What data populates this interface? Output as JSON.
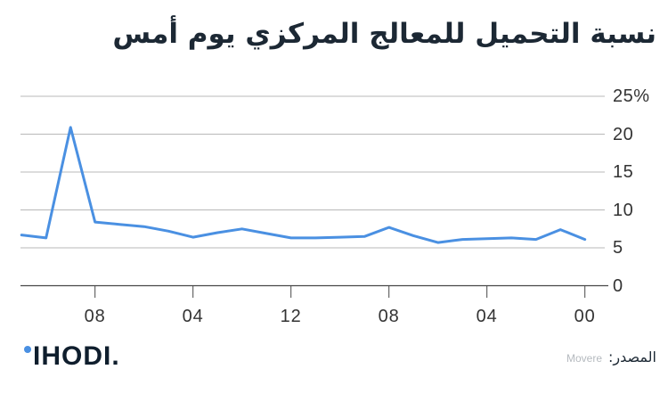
{
  "chart_data": {
    "type": "line",
    "title": "نسبة التحميل للمعالج المركزي يوم أمس",
    "x_axis_direction": "right-to-left",
    "hours": [
      0,
      1,
      2,
      3,
      4,
      5,
      6,
      7,
      8,
      9,
      10,
      11,
      12,
      13,
      14,
      15,
      16,
      17,
      18,
      19,
      20,
      21,
      22,
      23
    ],
    "values": [
      6.1,
      7.4,
      6.1,
      6.3,
      6.2,
      6.1,
      5.7,
      6.6,
      7.7,
      6.5,
      6.4,
      6.3,
      6.3,
      6.9,
      7.5,
      7.0,
      6.4,
      7.2,
      7.8,
      8.1,
      8.4,
      20.9,
      6.3,
      6.7
    ],
    "x_tick_labels": [
      "08",
      "04",
      "12",
      "08",
      "04",
      "00"
    ],
    "x_tick_hours": [
      20,
      16,
      12,
      8,
      4,
      0
    ],
    "y_tick_labels": [
      "25%",
      "20",
      "15",
      "10",
      "5",
      "0"
    ],
    "y_tick_values": [
      25,
      20,
      15,
      10,
      5,
      0
    ],
    "ylim": [
      0,
      25
    ],
    "grid": true,
    "legend": "none"
  },
  "footer": {
    "logo_text": "IHODI.",
    "source_label": "المصدر:",
    "source_value": "Movere"
  },
  "colors": {
    "line": "#4a90e2",
    "grid": "#b8b8b8",
    "axis": "#474747",
    "title": "#1c2834",
    "tick_label": "#333333",
    "logo": "#0f1e2d",
    "source_muted": "#b5babf"
  }
}
